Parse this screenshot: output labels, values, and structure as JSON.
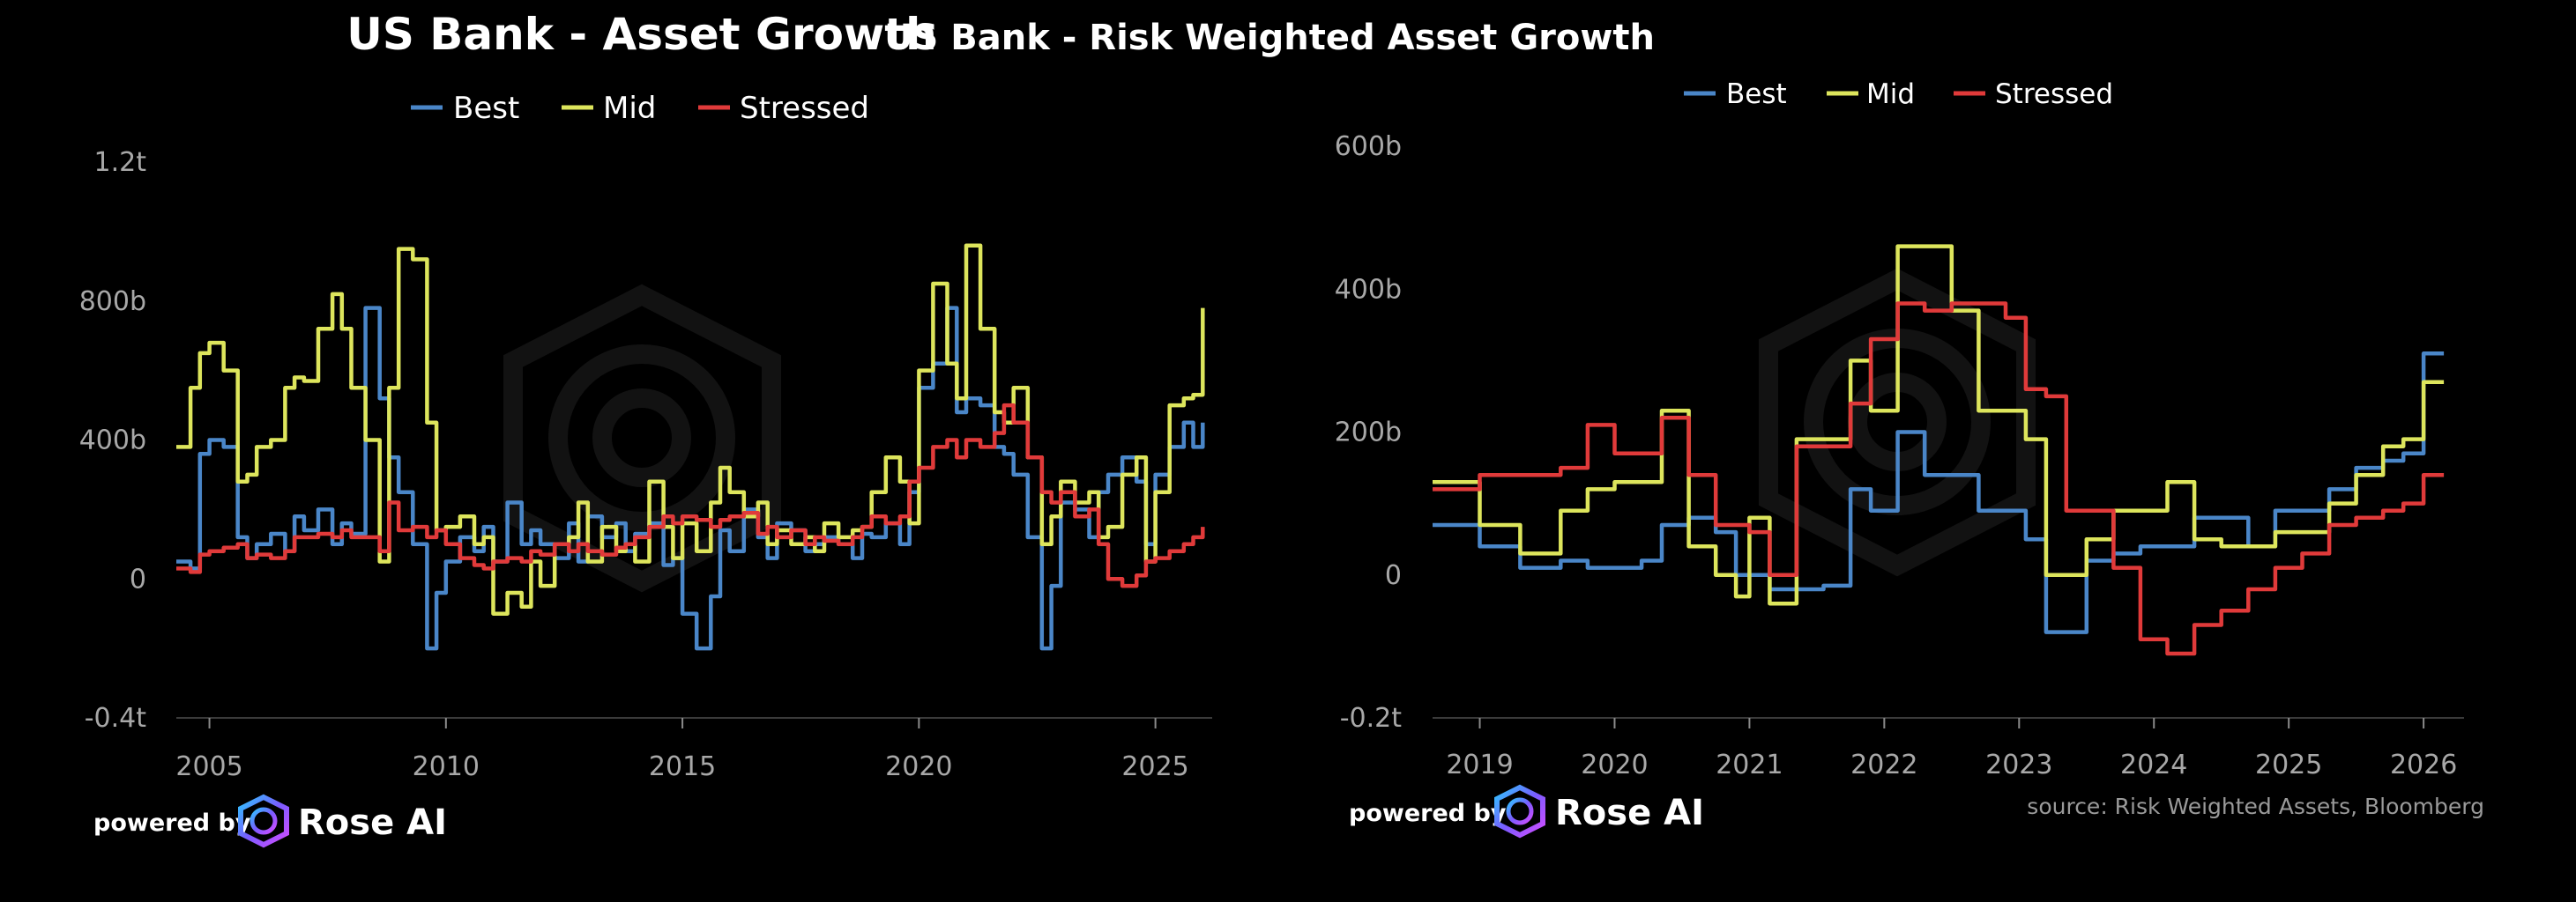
{
  "chart_data": [
    {
      "type": "line",
      "title": "US Bank - Asset Growth",
      "legend": [
        "Best",
        "Mid",
        "Stressed"
      ],
      "ylim": [
        -0.4,
        1.2
      ],
      "yticks": [
        -0.4,
        0,
        0.4,
        0.8,
        1.2
      ],
      "ytick_labels": [
        "-0.4t",
        "0",
        "400b",
        "800b",
        "1.2t"
      ],
      "xlim": [
        2004.3,
        2026.2
      ],
      "xticks": [
        2005,
        2010,
        2015,
        2020,
        2025
      ],
      "xtick_labels": [
        "2005",
        "2010",
        "2015",
        "2020",
        "2025"
      ],
      "series": [
        {
          "name": "Best",
          "color": "#4a86c8",
          "x": [
            2004.3,
            2004.6,
            2004.8,
            2005.0,
            2005.3,
            2005.6,
            2005.8,
            2006.0,
            2006.3,
            2006.6,
            2006.8,
            2007.0,
            2007.3,
            2007.6,
            2007.8,
            2008.0,
            2008.3,
            2008.6,
            2008.8,
            2009.0,
            2009.3,
            2009.6,
            2009.8,
            2010.0,
            2010.3,
            2010.6,
            2010.8,
            2011.0,
            2011.3,
            2011.6,
            2011.8,
            2012.0,
            2012.3,
            2012.6,
            2012.8,
            2013.0,
            2013.3,
            2013.6,
            2013.8,
            2014.0,
            2014.3,
            2014.6,
            2014.8,
            2015.0,
            2015.3,
            2015.6,
            2015.8,
            2016.0,
            2016.3,
            2016.6,
            2016.8,
            2017.0,
            2017.3,
            2017.6,
            2017.8,
            2018.0,
            2018.3,
            2018.6,
            2018.8,
            2019.0,
            2019.3,
            2019.6,
            2019.8,
            2020.0,
            2020.3,
            2020.6,
            2020.8,
            2021.0,
            2021.3,
            2021.6,
            2021.8,
            2022.0,
            2022.3,
            2022.6,
            2022.8,
            2023.0,
            2023.3,
            2023.6,
            2023.8,
            2024.0,
            2024.3,
            2024.6,
            2024.8,
            2025.0,
            2025.3,
            2025.6,
            2025.8,
            2026.0
          ],
          "y": [
            0.05,
            0.03,
            0.36,
            0.4,
            0.38,
            0.12,
            0.06,
            0.1,
            0.13,
            0.08,
            0.18,
            0.14,
            0.2,
            0.1,
            0.16,
            0.13,
            0.78,
            0.52,
            0.35,
            0.25,
            0.1,
            -0.2,
            -0.04,
            0.05,
            0.12,
            0.08,
            0.15,
            0.05,
            0.22,
            0.1,
            0.14,
            0.1,
            0.06,
            0.16,
            0.05,
            0.18,
            0.12,
            0.16,
            0.08,
            0.13,
            0.16,
            0.04,
            0.06,
            -0.1,
            -0.2,
            -0.05,
            0.14,
            0.08,
            0.2,
            0.12,
            0.06,
            0.16,
            0.14,
            0.08,
            0.1,
            0.12,
            0.1,
            0.06,
            0.13,
            0.12,
            0.16,
            0.1,
            0.25,
            0.55,
            0.62,
            0.78,
            0.48,
            0.52,
            0.5,
            0.38,
            0.36,
            0.3,
            0.12,
            -0.2,
            -0.02,
            0.22,
            0.2,
            0.12,
            0.25,
            0.3,
            0.35,
            0.28,
            0.1,
            0.3,
            0.38,
            0.45,
            0.38,
            0.45
          ]
        },
        {
          "name": "Mid",
          "color": "#dde55c",
          "x": [
            2004.3,
            2004.6,
            2004.8,
            2005.0,
            2005.3,
            2005.6,
            2005.8,
            2006.0,
            2006.3,
            2006.6,
            2006.8,
            2007.0,
            2007.3,
            2007.6,
            2007.8,
            2008.0,
            2008.3,
            2008.6,
            2008.8,
            2009.0,
            2009.3,
            2009.6,
            2009.8,
            2010.0,
            2010.3,
            2010.6,
            2010.8,
            2011.0,
            2011.3,
            2011.6,
            2011.8,
            2012.0,
            2012.3,
            2012.6,
            2012.8,
            2013.0,
            2013.3,
            2013.6,
            2013.8,
            2014.0,
            2014.3,
            2014.6,
            2014.8,
            2015.0,
            2015.3,
            2015.6,
            2015.8,
            2016.0,
            2016.3,
            2016.6,
            2016.8,
            2017.0,
            2017.3,
            2017.6,
            2017.8,
            2018.0,
            2018.3,
            2018.6,
            2018.8,
            2019.0,
            2019.3,
            2019.6,
            2019.8,
            2020.0,
            2020.3,
            2020.6,
            2020.8,
            2021.0,
            2021.3,
            2021.6,
            2021.8,
            2022.0,
            2022.3,
            2022.6,
            2022.8,
            2023.0,
            2023.3,
            2023.6,
            2023.8,
            2024.0,
            2024.3,
            2024.6,
            2024.8,
            2025.0,
            2025.3,
            2025.6,
            2025.8,
            2026.0
          ],
          "y": [
            0.38,
            0.55,
            0.65,
            0.68,
            0.6,
            0.28,
            0.3,
            0.38,
            0.4,
            0.55,
            0.58,
            0.57,
            0.72,
            0.82,
            0.72,
            0.55,
            0.4,
            0.05,
            0.55,
            0.95,
            0.92,
            0.45,
            0.14,
            0.15,
            0.18,
            0.1,
            0.12,
            -0.1,
            -0.04,
            -0.08,
            0.05,
            -0.02,
            0.1,
            0.12,
            0.22,
            0.05,
            0.15,
            0.08,
            0.1,
            0.05,
            0.28,
            0.15,
            0.06,
            0.16,
            0.08,
            0.22,
            0.32,
            0.25,
            0.18,
            0.22,
            0.1,
            0.14,
            0.1,
            0.12,
            0.08,
            0.16,
            0.12,
            0.14,
            0.15,
            0.25,
            0.35,
            0.28,
            0.16,
            0.6,
            0.85,
            0.62,
            0.52,
            0.96,
            0.72,
            0.48,
            0.45,
            0.55,
            0.35,
            0.1,
            0.18,
            0.28,
            0.22,
            0.25,
            0.12,
            0.15,
            0.3,
            0.35,
            0.05,
            0.25,
            0.5,
            0.52,
            0.53,
            0.78
          ]
        },
        {
          "name": "Stressed",
          "color": "#e03a3a",
          "x": [
            2004.3,
            2004.6,
            2004.8,
            2005.0,
            2005.3,
            2005.6,
            2005.8,
            2006.0,
            2006.3,
            2006.6,
            2006.8,
            2007.0,
            2007.3,
            2007.6,
            2007.8,
            2008.0,
            2008.3,
            2008.6,
            2008.8,
            2009.0,
            2009.3,
            2009.6,
            2009.8,
            2010.0,
            2010.3,
            2010.6,
            2010.8,
            2011.0,
            2011.3,
            2011.6,
            2011.8,
            2012.0,
            2012.3,
            2012.6,
            2012.8,
            2013.0,
            2013.3,
            2013.6,
            2013.8,
            2014.0,
            2014.3,
            2014.6,
            2014.8,
            2015.0,
            2015.3,
            2015.6,
            2015.8,
            2016.0,
            2016.3,
            2016.6,
            2016.8,
            2017.0,
            2017.3,
            2017.6,
            2017.8,
            2018.0,
            2018.3,
            2018.6,
            2018.8,
            2019.0,
            2019.3,
            2019.6,
            2019.8,
            2020.0,
            2020.3,
            2020.6,
            2020.8,
            2021.0,
            2021.3,
            2021.6,
            2021.8,
            2022.0,
            2022.3,
            2022.6,
            2022.8,
            2023.0,
            2023.3,
            2023.6,
            2023.8,
            2024.0,
            2024.3,
            2024.6,
            2024.8,
            2025.0,
            2025.3,
            2025.6,
            2025.8,
            2026.0
          ],
          "y": [
            0.03,
            0.02,
            0.07,
            0.08,
            0.09,
            0.1,
            0.06,
            0.07,
            0.06,
            0.08,
            0.12,
            0.12,
            0.13,
            0.12,
            0.14,
            0.12,
            0.12,
            0.08,
            0.22,
            0.14,
            0.15,
            0.12,
            0.14,
            0.1,
            0.06,
            0.04,
            0.03,
            0.05,
            0.06,
            0.05,
            0.08,
            0.07,
            0.1,
            0.08,
            0.1,
            0.08,
            0.07,
            0.09,
            0.1,
            0.12,
            0.15,
            0.18,
            0.16,
            0.18,
            0.17,
            0.15,
            0.17,
            0.18,
            0.19,
            0.13,
            0.15,
            0.12,
            0.14,
            0.1,
            0.12,
            0.11,
            0.1,
            0.12,
            0.15,
            0.18,
            0.16,
            0.18,
            0.28,
            0.32,
            0.38,
            0.4,
            0.35,
            0.4,
            0.38,
            0.42,
            0.5,
            0.45,
            0.35,
            0.25,
            0.22,
            0.25,
            0.18,
            0.2,
            0.1,
            0.0,
            -0.02,
            0.01,
            0.05,
            0.06,
            0.08,
            0.1,
            0.12,
            0.15
          ]
        }
      ]
    },
    {
      "type": "line",
      "title": "US Bank - Risk Weighted Asset Growth",
      "legend": [
        "Best",
        "Mid",
        "Stressed"
      ],
      "ylim": [
        -0.2,
        0.6
      ],
      "yticks": [
        -0.2,
        0,
        0.2,
        0.4,
        0.6
      ],
      "ytick_labels": [
        "-0.2t",
        "0",
        "200b",
        "400b",
        "600b"
      ],
      "xlim": [
        2018.65,
        2026.3
      ],
      "xticks": [
        2019,
        2020,
        2021,
        2022,
        2023,
        2024,
        2025,
        2026
      ],
      "xtick_labels": [
        "2019",
        "2020",
        "2021",
        "2022",
        "2023",
        "2024",
        "2025",
        "2026"
      ],
      "source": "source: Risk Weighted Assets, Bloomberg",
      "series": [
        {
          "name": "Best",
          "color": "#4a86c8",
          "x": [
            2018.65,
            2018.85,
            2019.0,
            2019.1,
            2019.3,
            2019.45,
            2019.6,
            2019.8,
            2020.0,
            2020.2,
            2020.35,
            2020.55,
            2020.75,
            2020.9,
            2021.0,
            2021.15,
            2021.35,
            2021.55,
            2021.75,
            2021.9,
            2022.1,
            2022.3,
            2022.5,
            2022.7,
            2022.9,
            2023.05,
            2023.2,
            2023.35,
            2023.5,
            2023.7,
            2023.9,
            2024.1,
            2024.3,
            2024.5,
            2024.7,
            2024.9,
            2025.1,
            2025.3,
            2025.5,
            2025.7,
            2025.85,
            2026.0,
            2026.15
          ],
          "y": [
            0.07,
            0.07,
            0.04,
            0.04,
            0.01,
            0.01,
            0.02,
            0.01,
            0.01,
            0.02,
            0.07,
            0.08,
            0.06,
            0.0,
            0.0,
            -0.02,
            -0.02,
            -0.015,
            0.12,
            0.09,
            0.2,
            0.14,
            0.14,
            0.09,
            0.09,
            0.05,
            -0.08,
            -0.08,
            0.02,
            0.03,
            0.04,
            0.04,
            0.08,
            0.08,
            0.04,
            0.09,
            0.09,
            0.12,
            0.15,
            0.16,
            0.17,
            0.31,
            0.31
          ]
        },
        {
          "name": "Mid",
          "color": "#dde55c",
          "x": [
            2018.65,
            2018.85,
            2019.0,
            2019.1,
            2019.3,
            2019.45,
            2019.6,
            2019.8,
            2020.0,
            2020.2,
            2020.35,
            2020.55,
            2020.75,
            2020.9,
            2021.0,
            2021.15,
            2021.35,
            2021.55,
            2021.75,
            2021.9,
            2022.1,
            2022.3,
            2022.5,
            2022.7,
            2022.9,
            2023.05,
            2023.2,
            2023.35,
            2023.5,
            2023.7,
            2023.9,
            2024.1,
            2024.3,
            2024.5,
            2024.7,
            2024.9,
            2025.1,
            2025.3,
            2025.5,
            2025.7,
            2025.85,
            2026.0,
            2026.15
          ],
          "y": [
            0.13,
            0.13,
            0.07,
            0.07,
            0.03,
            0.03,
            0.09,
            0.12,
            0.13,
            0.13,
            0.23,
            0.04,
            0.0,
            -0.03,
            0.08,
            -0.04,
            0.19,
            0.19,
            0.3,
            0.23,
            0.46,
            0.46,
            0.37,
            0.23,
            0.23,
            0.19,
            0.0,
            0.0,
            0.05,
            0.09,
            0.09,
            0.13,
            0.05,
            0.04,
            0.04,
            0.06,
            0.06,
            0.1,
            0.14,
            0.18,
            0.19,
            0.27,
            0.27
          ]
        },
        {
          "name": "Stressed",
          "color": "#e03a3a",
          "x": [
            2018.65,
            2018.85,
            2019.0,
            2019.1,
            2019.3,
            2019.45,
            2019.6,
            2019.8,
            2020.0,
            2020.2,
            2020.35,
            2020.55,
            2020.75,
            2020.9,
            2021.0,
            2021.15,
            2021.35,
            2021.55,
            2021.75,
            2021.9,
            2022.1,
            2022.3,
            2022.5,
            2022.7,
            2022.9,
            2023.05,
            2023.2,
            2023.35,
            2023.5,
            2023.7,
            2023.9,
            2024.1,
            2024.3,
            2024.5,
            2024.7,
            2024.9,
            2025.1,
            2025.3,
            2025.5,
            2025.7,
            2025.85,
            2026.0,
            2026.15
          ],
          "y": [
            0.12,
            0.12,
            0.14,
            0.14,
            0.14,
            0.14,
            0.15,
            0.21,
            0.17,
            0.17,
            0.22,
            0.14,
            0.07,
            0.07,
            0.06,
            0.0,
            0.18,
            0.18,
            0.24,
            0.33,
            0.38,
            0.37,
            0.38,
            0.38,
            0.36,
            0.26,
            0.25,
            0.09,
            0.09,
            0.01,
            -0.09,
            -0.11,
            -0.07,
            -0.05,
            -0.02,
            0.01,
            0.03,
            0.07,
            0.08,
            0.09,
            0.1,
            0.14,
            0.14
          ]
        }
      ]
    }
  ],
  "branding": {
    "powered_by": "powered by",
    "brand": "Rose AI"
  }
}
